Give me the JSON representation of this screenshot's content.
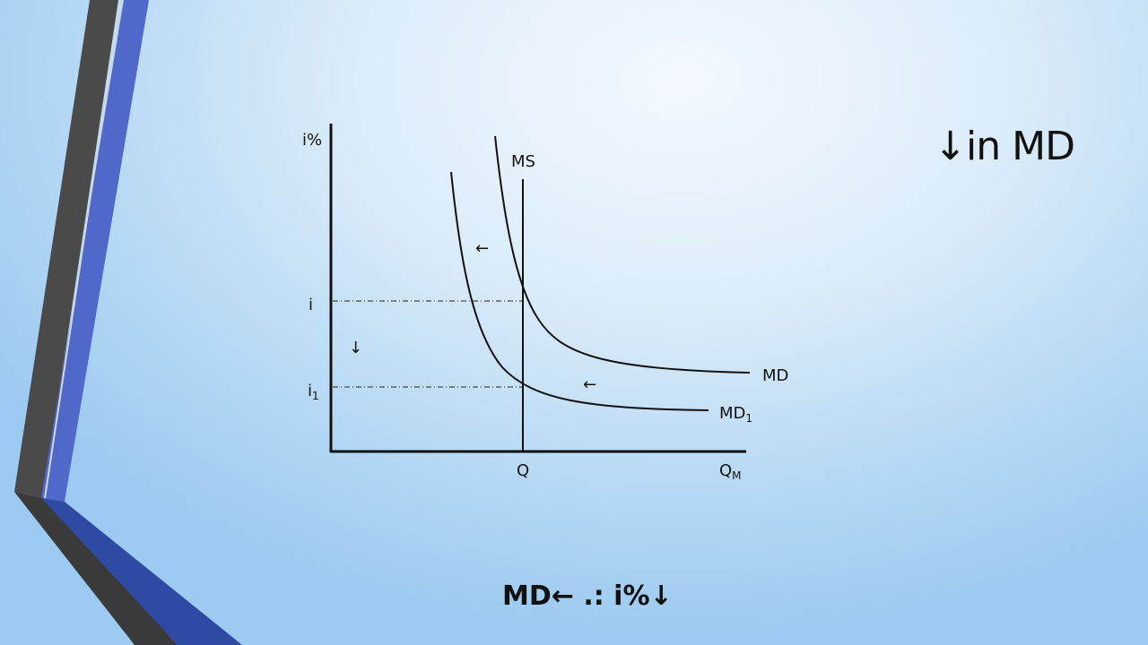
{
  "slide": {
    "title": "↓in MD",
    "caption": "MD← .: i%↓"
  },
  "diagram": {
    "y_axis_label": "i%",
    "x_axis_label": "Q",
    "x_axis_label_sub": "M",
    "money_supply_label": "MS",
    "demand_label": "MD",
    "new_demand_label": "MD",
    "new_demand_sub": "1",
    "rate_label": "i",
    "new_rate_label": "i",
    "new_rate_sub": "1",
    "quantity_label": "Q",
    "shift_left_arrow": "←",
    "rate_fall_arrow": "↓"
  },
  "colors": {
    "band_dark": "#4a4a4a",
    "band_blue": "#4f68c9",
    "band_dark_lower": "#3a3a3a",
    "band_blue_lower": "#2f4aa3"
  }
}
